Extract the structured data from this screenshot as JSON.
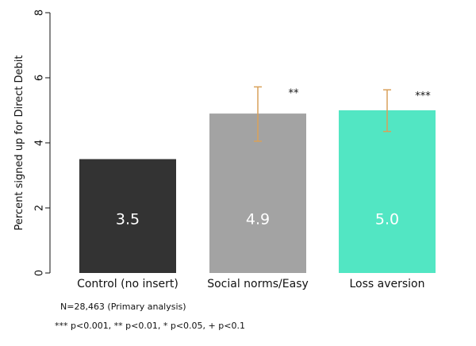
{
  "chart_data": {
    "type": "bar",
    "title": "",
    "xlabel": "",
    "ylabel": "Percent signed up for Direct Debit",
    "ylim": [
      0,
      8
    ],
    "yticks": [
      "0",
      "2",
      "4",
      "6",
      "8"
    ],
    "grid": false,
    "categories": [
      "Control (no insert)",
      "Social norms/Easy",
      "Loss aversion"
    ],
    "values": [
      3.5,
      4.9,
      5.0
    ],
    "value_labels": [
      "3.5",
      "4.9",
      "5.0"
    ],
    "error_low": [
      null,
      4.05,
      4.35
    ],
    "error_high": [
      null,
      5.72,
      5.63
    ],
    "significance": [
      "",
      "**",
      "***"
    ],
    "colors": [
      "#333333",
      "#a3a3a3",
      "#52e6c3"
    ],
    "error_color": "#d9a15a"
  },
  "notes": {
    "sample": "N=28,463 (Primary analysis)",
    "significance_key": "*** p<0.001, ** p<0.01, * p<0.05, + p<0.1"
  }
}
